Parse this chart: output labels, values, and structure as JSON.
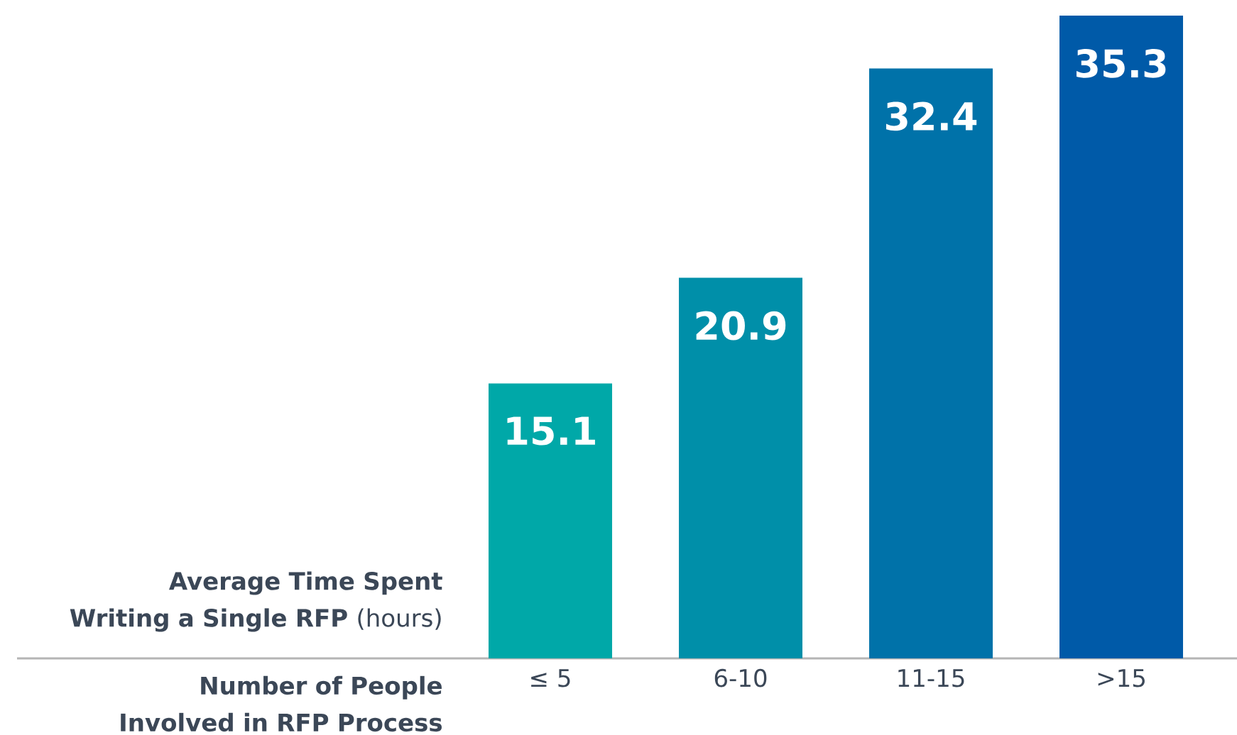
{
  "chart_data": {
    "type": "bar",
    "ylabel": "**Average Time Spent Writing a Single RFP** (hours)",
    "xlabel": "Number of People Involved in RFP Process",
    "categories": [
      "≤ 5",
      "6-10",
      "11-15",
      ">15"
    ],
    "values": [
      15.1,
      20.9,
      32.4,
      35.3
    ],
    "colors": [
      "#00a8a8",
      "#008fa9",
      "#0072a9",
      "#005aa8"
    ],
    "data_labels": true
  }
}
